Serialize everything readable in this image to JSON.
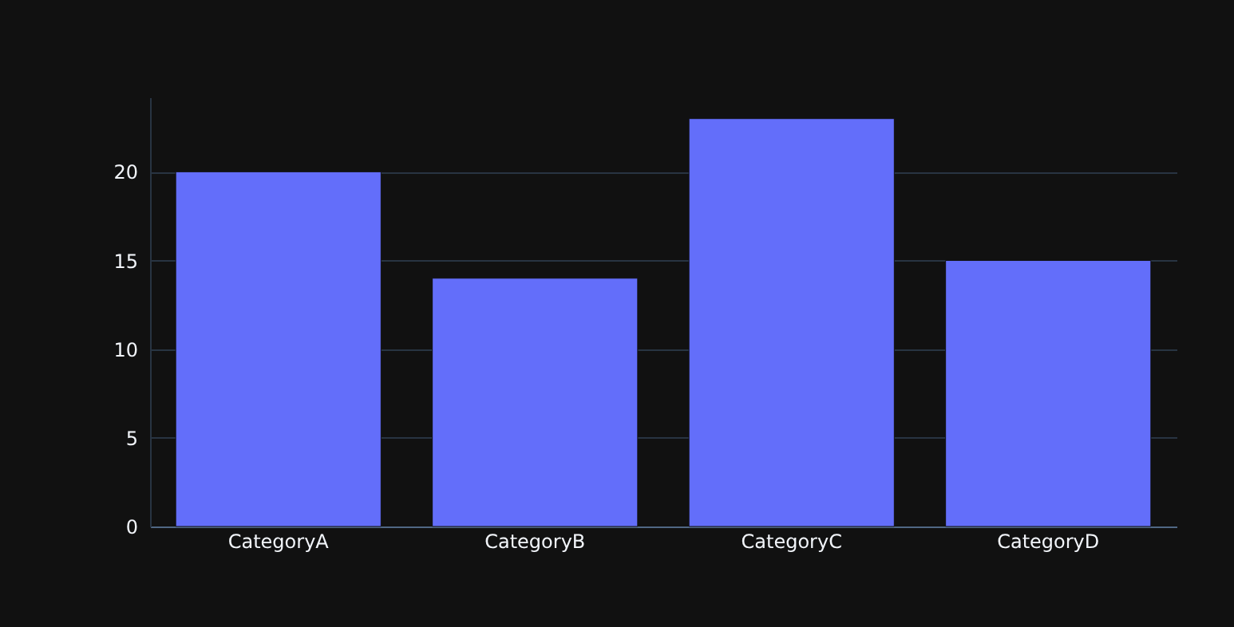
{
  "chart_data": {
    "type": "bar",
    "categories": [
      "CategoryA",
      "CategoryB",
      "CategoryC",
      "CategoryD"
    ],
    "values": [
      20,
      14,
      23,
      15
    ],
    "color": "#636efa",
    "ylim": [
      0,
      24.2
    ],
    "yticks": [
      0,
      5,
      10,
      15,
      20
    ],
    "grid": "y"
  }
}
